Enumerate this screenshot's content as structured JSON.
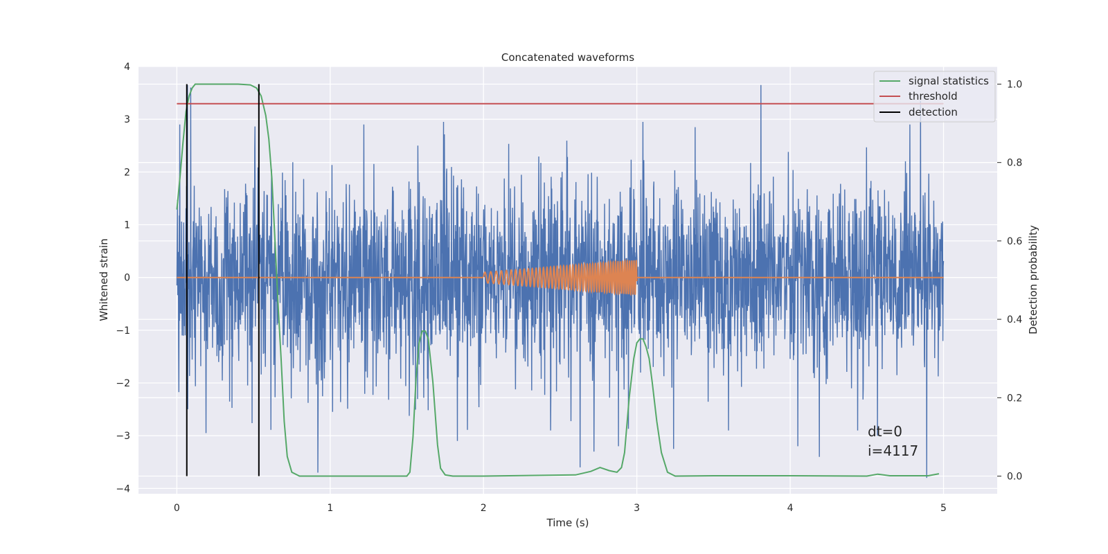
{
  "chart_data": {
    "type": "line",
    "title": "Concatenated waveforms",
    "xlabel": "Time (s)",
    "ylabel": "Whitened strain",
    "ylabel_right": "Detection probability",
    "xlim": [
      -0.25,
      5.35
    ],
    "ylim": [
      -4.1,
      4.0
    ],
    "ylim_right": [
      -0.045,
      1.045
    ],
    "x_ticks": [
      0,
      1,
      2,
      3,
      4,
      5
    ],
    "x_tick_labels": [
      "0",
      "1",
      "2",
      "3",
      "4",
      "5"
    ],
    "y_ticks": [
      4,
      3,
      2,
      1,
      0,
      -1,
      -2,
      -3,
      -4
    ],
    "y_tick_labels": [
      "4",
      "3",
      "2",
      "1",
      "0",
      "−1",
      "−2",
      "−3",
      "−4"
    ],
    "y_right_ticks": [
      1.0,
      0.8,
      0.6,
      0.4,
      0.2,
      0.0
    ],
    "y_right_tick_labels": [
      "1.0",
      "0.8",
      "0.6",
      "0.4",
      "0.2",
      "0.0"
    ],
    "grid": true,
    "legend_position": "top-right",
    "legend": [
      "signal statistics",
      "threshold",
      "detection"
    ],
    "annotation": {
      "line1": "dt=0",
      "line2": "i=4117"
    },
    "colors": {
      "strain": "#4c72b0",
      "waveform": "#dd8452",
      "signal_statistics": "#55a868",
      "threshold": "#c44e52",
      "detection": "#000000",
      "background": "#eaeaf2",
      "grid": "#ffffff"
    },
    "series": [
      {
        "name": "whitened strain",
        "axis": "left",
        "style": "noise",
        "x_range": [
          0,
          5
        ],
        "std": 0.9,
        "spikes": [
          {
            "x": 0.07,
            "y": 3.65
          },
          {
            "x": 0.09,
            "y": 3.6
          },
          {
            "x": 0.02,
            "y": 2.9
          },
          {
            "x": 0.19,
            "y": -2.95
          },
          {
            "x": 0.92,
            "y": -3.7
          },
          {
            "x": 1.22,
            "y": 2.9
          },
          {
            "x": 1.83,
            "y": -3.1
          },
          {
            "x": 2.63,
            "y": -3.6
          },
          {
            "x": 2.72,
            "y": -3.3
          },
          {
            "x": 2.88,
            "y": -3.2
          },
          {
            "x": 3.04,
            "y": 2.95
          },
          {
            "x": 3.24,
            "y": -3.25
          },
          {
            "x": 3.81,
            "y": 3.65
          },
          {
            "x": 4.05,
            "y": -3.2
          },
          {
            "x": 4.19,
            "y": -3.4
          },
          {
            "x": 4.57,
            "y": -3.0
          },
          {
            "x": 4.85,
            "y": 3.35
          },
          {
            "x": 4.89,
            "y": -3.8
          },
          {
            "x": 4.78,
            "y": 2.9
          },
          {
            "x": 1.74,
            "y": 2.95
          },
          {
            "x": 3.38,
            "y": 2.85
          }
        ]
      },
      {
        "name": "injected waveform",
        "axis": "left",
        "style": "chirp",
        "flat": [
          [
            0,
            0
          ],
          [
            5,
            0
          ]
        ],
        "chirp_t": [
          2.0,
          3.0
        ],
        "chirp_amp": [
          0.1,
          0.33
        ],
        "chirp_freq_hz": [
          25,
          70
        ]
      },
      {
        "name": "signal statistics",
        "axis": "right",
        "x": [
          0.0,
          0.02,
          0.04,
          0.06,
          0.08,
          0.1,
          0.12,
          0.15,
          0.2,
          0.3,
          0.4,
          0.48,
          0.52,
          0.55,
          0.58,
          0.6,
          0.62,
          0.64,
          0.66,
          0.68,
          0.7,
          0.72,
          0.75,
          0.8,
          1.0,
          1.5,
          1.52,
          1.54,
          1.56,
          1.58,
          1.6,
          1.62,
          1.64,
          1.67,
          1.7,
          1.72,
          1.75,
          1.8,
          2.0,
          2.6,
          2.7,
          2.76,
          2.82,
          2.87,
          2.9,
          2.92,
          2.95,
          2.98,
          3.0,
          3.02,
          3.04,
          3.06,
          3.08,
          3.1,
          3.13,
          3.16,
          3.2,
          3.25,
          3.5,
          4.0,
          4.5,
          4.57,
          4.65,
          4.9,
          4.97
        ],
        "values": [
          0.68,
          0.76,
          0.85,
          0.93,
          0.97,
          0.99,
          1.0,
          1.0,
          1.0,
          1.0,
          1.0,
          0.998,
          0.99,
          0.97,
          0.92,
          0.86,
          0.76,
          0.6,
          0.44,
          0.3,
          0.14,
          0.05,
          0.01,
          0.0,
          0.0,
          0.0,
          0.01,
          0.1,
          0.25,
          0.34,
          0.37,
          0.37,
          0.35,
          0.24,
          0.08,
          0.02,
          0.003,
          0.0,
          0.0,
          0.003,
          0.012,
          0.022,
          0.014,
          0.01,
          0.022,
          0.06,
          0.2,
          0.3,
          0.34,
          0.35,
          0.35,
          0.33,
          0.3,
          0.24,
          0.14,
          0.06,
          0.01,
          0.0,
          0.001,
          0.001,
          0.0,
          0.005,
          0.001,
          0.001,
          0.006
        ]
      },
      {
        "name": "threshold",
        "axis": "right",
        "x": [
          0,
          5
        ],
        "values": [
          0.95,
          0.95
        ]
      },
      {
        "name": "detection",
        "axis": "right",
        "style": "vertical",
        "x": [
          0.065,
          0.535
        ],
        "range": [
          0.0,
          1.0
        ]
      }
    ]
  }
}
